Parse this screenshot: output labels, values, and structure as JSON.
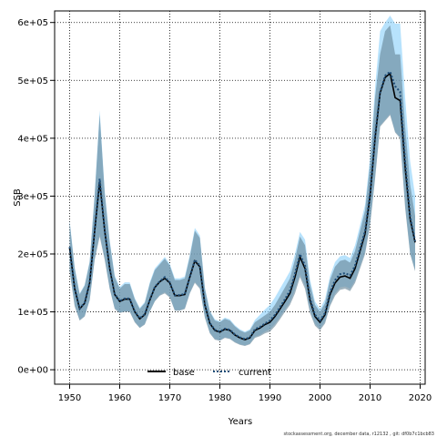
{
  "chart_data": {
    "type": "line",
    "xlabel": "Years",
    "ylabel": "SSB",
    "xlim": [
      1947,
      2021
    ],
    "ylim": [
      -25000,
      620000
    ],
    "x_ticks": [
      1950,
      1960,
      1970,
      1980,
      1990,
      2000,
      2010,
      2020
    ],
    "y_ticks": [
      0,
      100000,
      200000,
      300000,
      400000,
      500000,
      600000
    ],
    "y_tick_labels": [
      "0e+00",
      "1e+05",
      "2e+05",
      "3e+05",
      "4e+05",
      "5e+05",
      "6e+05"
    ],
    "x_tick_labels": [
      "1950",
      "1960",
      "1970",
      "1980",
      "1990",
      "2000",
      "2010",
      "2020"
    ],
    "grid": true,
    "legend_position": "bottom-center",
    "colors": {
      "base": "#000000",
      "current": "#1f4e79",
      "base_band": "#7f7f7f",
      "current_band": "#87cefa",
      "overlap_band": "#5a93b5"
    },
    "series": [
      {
        "name": "base",
        "style": "solid",
        "x": [
          1950,
          1951,
          1952,
          1953,
          1954,
          1955,
          1956,
          1957,
          1958,
          1959,
          1960,
          1961,
          1962,
          1963,
          1964,
          1965,
          1966,
          1967,
          1968,
          1969,
          1970,
          1971,
          1972,
          1973,
          1974,
          1975,
          1976,
          1977,
          1978,
          1979,
          1980,
          1981,
          1982,
          1983,
          1984,
          1985,
          1986,
          1987,
          1988,
          1989,
          1990,
          1991,
          1992,
          1993,
          1994,
          1995,
          1996,
          1997,
          1998,
          1999,
          2000,
          2001,
          2002,
          2003,
          2004,
          2005,
          2006,
          2007,
          2008,
          2009,
          2010,
          2011,
          2012,
          2013,
          2014,
          2015,
          2016,
          2017,
          2018,
          2019
        ],
        "y": [
          210000,
          140000,
          105000,
          115000,
          150000,
          240000,
          325000,
          240000,
          175000,
          130000,
          118000,
          122000,
          122000,
          100000,
          88000,
          95000,
          120000,
          142000,
          152000,
          158000,
          150000,
          128000,
          128000,
          130000,
          160000,
          188000,
          178000,
          112000,
          80000,
          68000,
          65000,
          70000,
          68000,
          60000,
          55000,
          52000,
          55000,
          68000,
          72000,
          78000,
          82000,
          92000,
          105000,
          118000,
          132000,
          160000,
          195000,
          175000,
          120000,
          92000,
          82000,
          95000,
          130000,
          150000,
          160000,
          162000,
          158000,
          175000,
          205000,
          235000,
          300000,
          400000,
          478000,
          505000,
          512000,
          470000,
          465000,
          350000,
          260000,
          220000
        ],
        "lower": [
          170000,
          110000,
          85000,
          92000,
          120000,
          190000,
          230000,
          190000,
          140000,
          105000,
          98000,
          100000,
          100000,
          82000,
          72000,
          78000,
          100000,
          118000,
          128000,
          132000,
          125000,
          102000,
          102000,
          105000,
          132000,
          150000,
          140000,
          90000,
          63000,
          52000,
          50000,
          55000,
          53000,
          47000,
          43000,
          41000,
          44000,
          55000,
          58000,
          63000,
          66000,
          75000,
          87000,
          100000,
          112000,
          132000,
          160000,
          140000,
          98000,
          76000,
          68000,
          80000,
          110000,
          128000,
          138000,
          140000,
          136000,
          150000,
          175000,
          200000,
          250000,
          330000,
          420000,
          430000,
          440000,
          410000,
          400000,
          280000,
          200000,
          170000
        ],
        "upper": [
          255000,
          175000,
          130000,
          145000,
          185000,
          300000,
          440000,
          305000,
          220000,
          160000,
          140000,
          148000,
          148000,
          122000,
          105000,
          115000,
          148000,
          172000,
          182000,
          192000,
          180000,
          155000,
          155000,
          158000,
          195000,
          240000,
          228000,
          140000,
          100000,
          85000,
          82000,
          88000,
          85000,
          75000,
          68000,
          64000,
          68000,
          82000,
          88000,
          94000,
          100000,
          112000,
          127000,
          142000,
          158000,
          190000,
          230000,
          215000,
          148000,
          112000,
          100000,
          115000,
          155000,
          178000,
          188000,
          190000,
          185000,
          205000,
          240000,
          275000,
          355000,
          470000,
          545000,
          585000,
          595000,
          545000,
          545000,
          420000,
          320000,
          265000
        ]
      },
      {
        "name": "current",
        "style": "dotted",
        "x": [
          1950,
          1951,
          1952,
          1953,
          1954,
          1955,
          1956,
          1957,
          1958,
          1959,
          1960,
          1961,
          1962,
          1963,
          1964,
          1965,
          1966,
          1967,
          1968,
          1969,
          1970,
          1971,
          1972,
          1973,
          1974,
          1975,
          1976,
          1977,
          1978,
          1979,
          1980,
          1981,
          1982,
          1983,
          1984,
          1985,
          1986,
          1987,
          1988,
          1989,
          1990,
          1991,
          1992,
          1993,
          1994,
          1995,
          1996,
          1997,
          1998,
          1999,
          2000,
          2001,
          2002,
          2003,
          2004,
          2005,
          2006,
          2007,
          2008,
          2009,
          2010,
          2011,
          2012,
          2013,
          2014,
          2015,
          2016,
          2017,
          2018,
          2019
        ],
        "y": [
          212000,
          142000,
          106000,
          116000,
          152000,
          242000,
          330000,
          242000,
          176000,
          131000,
          119000,
          123000,
          123000,
          101000,
          89000,
          96000,
          121000,
          143000,
          153000,
          160000,
          151000,
          129000,
          129000,
          131000,
          161000,
          190000,
          180000,
          113000,
          81000,
          69000,
          66000,
          71000,
          69000,
          61000,
          56000,
          53000,
          56000,
          70000,
          74000,
          80000,
          85000,
          95000,
          108000,
          122000,
          137000,
          166000,
          200000,
          180000,
          124000,
          95000,
          85000,
          98000,
          134000,
          155000,
          165000,
          167000,
          163000,
          180000,
          210000,
          240000,
          305000,
          405000,
          480000,
          508000,
          515000,
          490000,
          480000,
          360000,
          265000,
          222000
        ],
        "lower": [
          172000,
          112000,
          86000,
          93000,
          121000,
          192000,
          235000,
          192000,
          141000,
          106000,
          99000,
          101000,
          101000,
          83000,
          73000,
          79000,
          101000,
          119000,
          129000,
          134000,
          126000,
          103000,
          103000,
          106000,
          133000,
          152000,
          142000,
          91000,
          64000,
          53000,
          51000,
          56000,
          54000,
          48000,
          44000,
          42000,
          45000,
          57000,
          60000,
          66000,
          70000,
          79000,
          91000,
          104000,
          117000,
          138000,
          165000,
          145000,
          102000,
          79000,
          71000,
          83000,
          113000,
          132000,
          142000,
          144000,
          140000,
          154000,
          179000,
          204000,
          254000,
          334000,
          422000,
          432000,
          442000,
          412000,
          402000,
          285000,
          202000,
          172000
        ],
        "upper": [
          258000,
          178000,
          132000,
          147000,
          188000,
          305000,
          448000,
          310000,
          224000,
          163000,
          143000,
          151000,
          151000,
          124000,
          107000,
          117000,
          151000,
          175000,
          185000,
          195000,
          183000,
          158000,
          158000,
          161000,
          199000,
          245000,
          232000,
          143000,
          102000,
          87000,
          84000,
          90000,
          87000,
          77000,
          70000,
          66000,
          70000,
          86000,
          95000,
          104000,
          112000,
          125000,
          140000,
          155000,
          170000,
          200000,
          238000,
          225000,
          156000,
          118000,
          105000,
          122000,
          162000,
          186000,
          196000,
          198000,
          193000,
          215000,
          250000,
          285000,
          368000,
          488000,
          585000,
          600000,
          612000,
          598000,
          598000,
          470000,
          360000,
          300000
        ]
      }
    ],
    "legend": [
      "base",
      "current"
    ],
    "footer_note": "stockassessment.org, december data, r12132 , git: df0b7c1bcb83"
  }
}
